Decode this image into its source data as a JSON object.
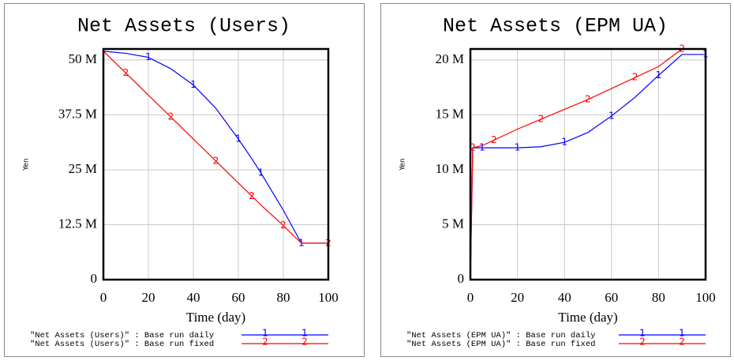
{
  "chart_data": [
    {
      "type": "line",
      "title": "Net Assets (Users)",
      "y_label": "Yen",
      "x_label": "Time (day)",
      "x": [
        0,
        10,
        20,
        30,
        40,
        50,
        60,
        66,
        70,
        80,
        88,
        100
      ],
      "series": [
        {
          "name": "\"Net Assets (Users)\" : Base run daily",
          "marker": "1",
          "color": "#0000ff",
          "values": [
            52,
            51.5,
            50.6,
            48,
            44.3,
            39,
            32,
            27.5,
            24.3,
            15.8,
            8.3,
            8.3
          ]
        },
        {
          "name": "\"Net Assets (Users)\" : Base run fixed",
          "marker": "2",
          "color": "#ff0000",
          "values": [
            52,
            47,
            42,
            37,
            32,
            27,
            22,
            19,
            17,
            12.3,
            8.3,
            8.3
          ]
        }
      ],
      "xlim": [
        0,
        100
      ],
      "xticks": [
        0,
        20,
        40,
        60,
        80,
        100
      ],
      "ylim": [
        0,
        52.5
      ],
      "yticks": [
        {
          "value": 0,
          "label": "0"
        },
        {
          "value": 12.5,
          "label": "12.5 M"
        },
        {
          "value": 25,
          "label": "25 M"
        },
        {
          "value": 37.5,
          "label": "37.5 M"
        },
        {
          "value": 50,
          "label": "50 M"
        }
      ],
      "grid": true
    },
    {
      "type": "line",
      "title": "Net Assets (EPM UA)",
      "y_label": "Yen",
      "x_label": "Time (day)",
      "x": [
        0,
        1,
        5,
        10,
        20,
        30,
        40,
        50,
        60,
        70,
        80,
        90,
        100
      ],
      "series": [
        {
          "name": "\"Net Assets (EPM UA)\" : Base run daily",
          "marker": "1",
          "color": "#0000ff",
          "values": [
            0,
            12,
            12,
            12,
            12,
            12.1,
            12.5,
            13.4,
            14.9,
            16.6,
            18.6,
            20.5,
            20.5
          ]
        },
        {
          "name": "\"Net Assets (EPM UA)\" : Base run fixed",
          "marker": "2",
          "color": "#ff0000",
          "values": [
            0,
            12,
            12.2,
            12.7,
            13.7,
            14.6,
            15.5,
            16.4,
            17.4,
            18.4,
            19.4,
            21,
            21
          ]
        }
      ],
      "xlim": [
        0,
        100
      ],
      "xticks": [
        0,
        20,
        40,
        60,
        80,
        100
      ],
      "ylim": [
        0,
        21
      ],
      "yticks": [
        {
          "value": 0,
          "label": "0"
        },
        {
          "value": 5,
          "label": "5 M"
        },
        {
          "value": 10,
          "label": "10 M"
        },
        {
          "value": 15,
          "label": "15 M"
        },
        {
          "value": 20,
          "label": "20 M"
        }
      ],
      "grid": true
    }
  ]
}
